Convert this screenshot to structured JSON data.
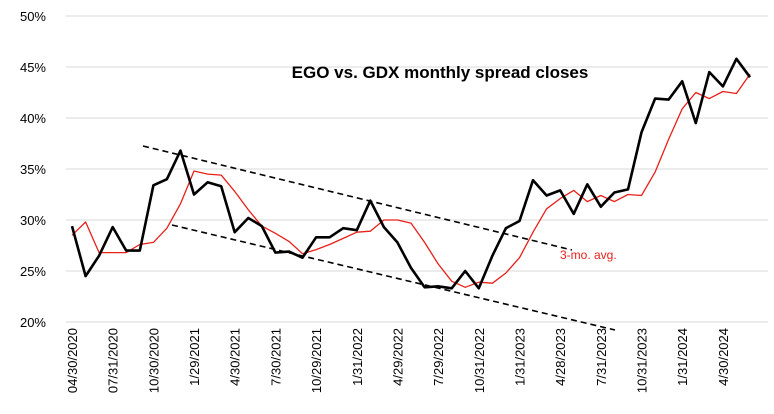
{
  "chart_data": {
    "type": "line",
    "title": "EGO vs. GDX monthly spread closes",
    "categories": [
      "04/30/2020",
      null,
      null,
      "07/31/2020",
      null,
      null,
      "10/30/2020",
      null,
      null,
      "1/29/2021",
      null,
      null,
      "4/30/2021",
      null,
      null,
      "7/30/2021",
      null,
      null,
      "10/29/2021",
      null,
      null,
      "1/31/2022",
      null,
      null,
      "4/29/2022",
      null,
      null,
      "7/29/2022",
      null,
      null,
      "10/31/2022",
      null,
      null,
      "1/31/2023",
      null,
      null,
      "4/28/2023",
      null,
      null,
      "7/31/2023",
      null,
      null,
      "10/31/2023",
      null,
      null,
      "1/31/2024",
      null,
      null,
      "4/30/2024",
      null,
      null
    ],
    "series": [
      {
        "color": "#000000",
        "values": [
          29.4,
          24.5,
          26.5,
          29.3,
          27.0,
          27.0,
          33.4,
          34.0,
          36.8,
          32.5,
          33.7,
          33.3,
          28.8,
          30.2,
          29.4,
          26.8,
          26.9,
          26.3,
          28.3,
          28.3,
          29.2,
          29.0,
          31.9,
          29.3,
          27.8,
          25.3,
          23.4,
          23.5,
          23.3,
          25.0,
          23.3,
          26.5,
          29.2,
          29.9,
          33.9,
          32.4,
          32.9,
          30.6,
          33.5,
          31.3,
          32.7,
          33.0,
          38.6,
          41.9,
          41.8,
          43.6,
          39.5,
          44.5,
          43.1,
          45.8,
          44.0
        ]
      },
      {
        "name": "3-mo. avg.",
        "color": "#e8201a",
        "values": [
          28.5,
          29.8,
          26.8,
          26.8,
          26.8,
          27.6,
          27.8,
          29.2,
          31.6,
          34.8,
          34.5,
          34.4,
          32.8,
          31.0,
          29.4,
          28.7,
          27.9,
          26.7,
          27.1,
          27.6,
          28.2,
          28.8,
          28.9,
          30.0,
          30.0,
          29.7,
          27.8,
          25.7,
          24.0,
          23.4,
          23.9,
          23.8,
          24.8,
          26.3,
          28.8,
          31.1,
          32.1,
          32.9,
          31.8,
          32.4,
          31.8,
          32.5,
          32.4,
          34.7,
          37.9,
          40.9,
          42.5,
          41.9,
          42.6,
          42.4,
          44.3
        ]
      }
    ],
    "ylim": [
      20,
      50
    ],
    "yticks": [
      {
        "value": 20,
        "label": "20%"
      },
      {
        "value": 25,
        "label": "25%"
      },
      {
        "value": 30,
        "label": "30%"
      },
      {
        "value": 35,
        "label": "35%"
      },
      {
        "value": 40,
        "label": "40%"
      },
      {
        "value": 45,
        "label": "45%"
      },
      {
        "value": 50,
        "label": "50%"
      }
    ],
    "grid": true
  }
}
